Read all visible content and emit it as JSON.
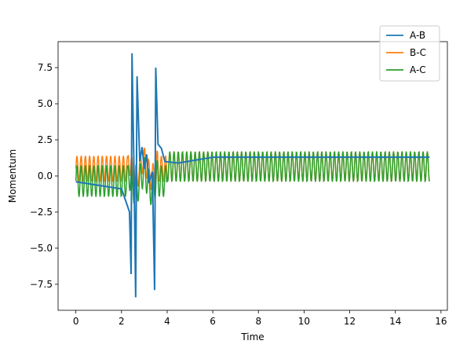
{
  "chart_data": {
    "type": "line",
    "xlabel": "Time",
    "ylabel": "Momentum",
    "xlim": [
      -0.78,
      16.28
    ],
    "ylim": [
      -9.3,
      9.3
    ],
    "xticks": [
      0,
      2,
      4,
      6,
      8,
      10,
      12,
      14,
      16
    ],
    "yticks": [
      -7.5,
      -5.0,
      -2.5,
      0.0,
      2.5,
      5.0,
      7.5
    ],
    "ytick_labels": [
      "−7.5",
      "−5.0",
      "−2.5",
      "0.0",
      "2.5",
      "5.0",
      "7.5"
    ],
    "grid": false,
    "legend_position": "top-right",
    "time_range": [
      0,
      15.5
    ],
    "series": [
      {
        "name": "A-B",
        "color": "#1f77b4",
        "description_points": [
          [
            0,
            -0.4
          ],
          [
            2.0,
            -0.9
          ],
          [
            2.2,
            -1.8
          ],
          [
            2.35,
            -2.5
          ],
          [
            2.42,
            -6.8
          ],
          [
            2.46,
            8.5
          ],
          [
            2.55,
            0.0
          ],
          [
            2.62,
            -8.4
          ],
          [
            2.68,
            6.9
          ],
          [
            2.8,
            1.0
          ],
          [
            2.9,
            2.0
          ],
          [
            3.0,
            0.5
          ],
          [
            3.1,
            1.5
          ],
          [
            3.2,
            -0.5
          ],
          [
            3.35,
            0.3
          ],
          [
            3.45,
            -7.9
          ],
          [
            3.5,
            7.5
          ],
          [
            3.6,
            2.2
          ],
          [
            3.75,
            1.9
          ],
          [
            3.9,
            1.0
          ],
          [
            4.5,
            0.9
          ],
          [
            6.0,
            1.3
          ],
          [
            15.5,
            1.3
          ]
        ]
      },
      {
        "name": "B-C",
        "color": "#ff7f0e",
        "center": 0.5,
        "amplitude": 0.9,
        "late_center": 0.65,
        "late_amplitude": 1.05
      },
      {
        "name": "A-C",
        "color": "#2ca02c",
        "center": -0.35,
        "amplitude": 1.1,
        "late_center": 0.65,
        "late_amplitude": 1.05
      }
    ]
  }
}
